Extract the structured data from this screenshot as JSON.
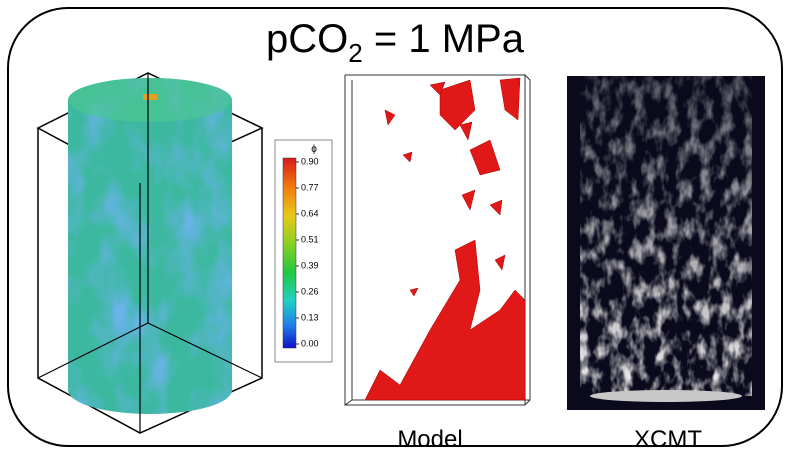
{
  "title": {
    "main": "pCO",
    "subscript": "2",
    "rest": " = 1 MPa"
  },
  "colorbar": {
    "label": "ϕ",
    "ticks": [
      "0.90",
      "0.77",
      "0.64",
      "0.51",
      "0.39",
      "0.26",
      "0.13",
      "0.00"
    ]
  },
  "panels": [
    {
      "label": "Model"
    },
    {
      "label": "XCMT"
    }
  ]
}
